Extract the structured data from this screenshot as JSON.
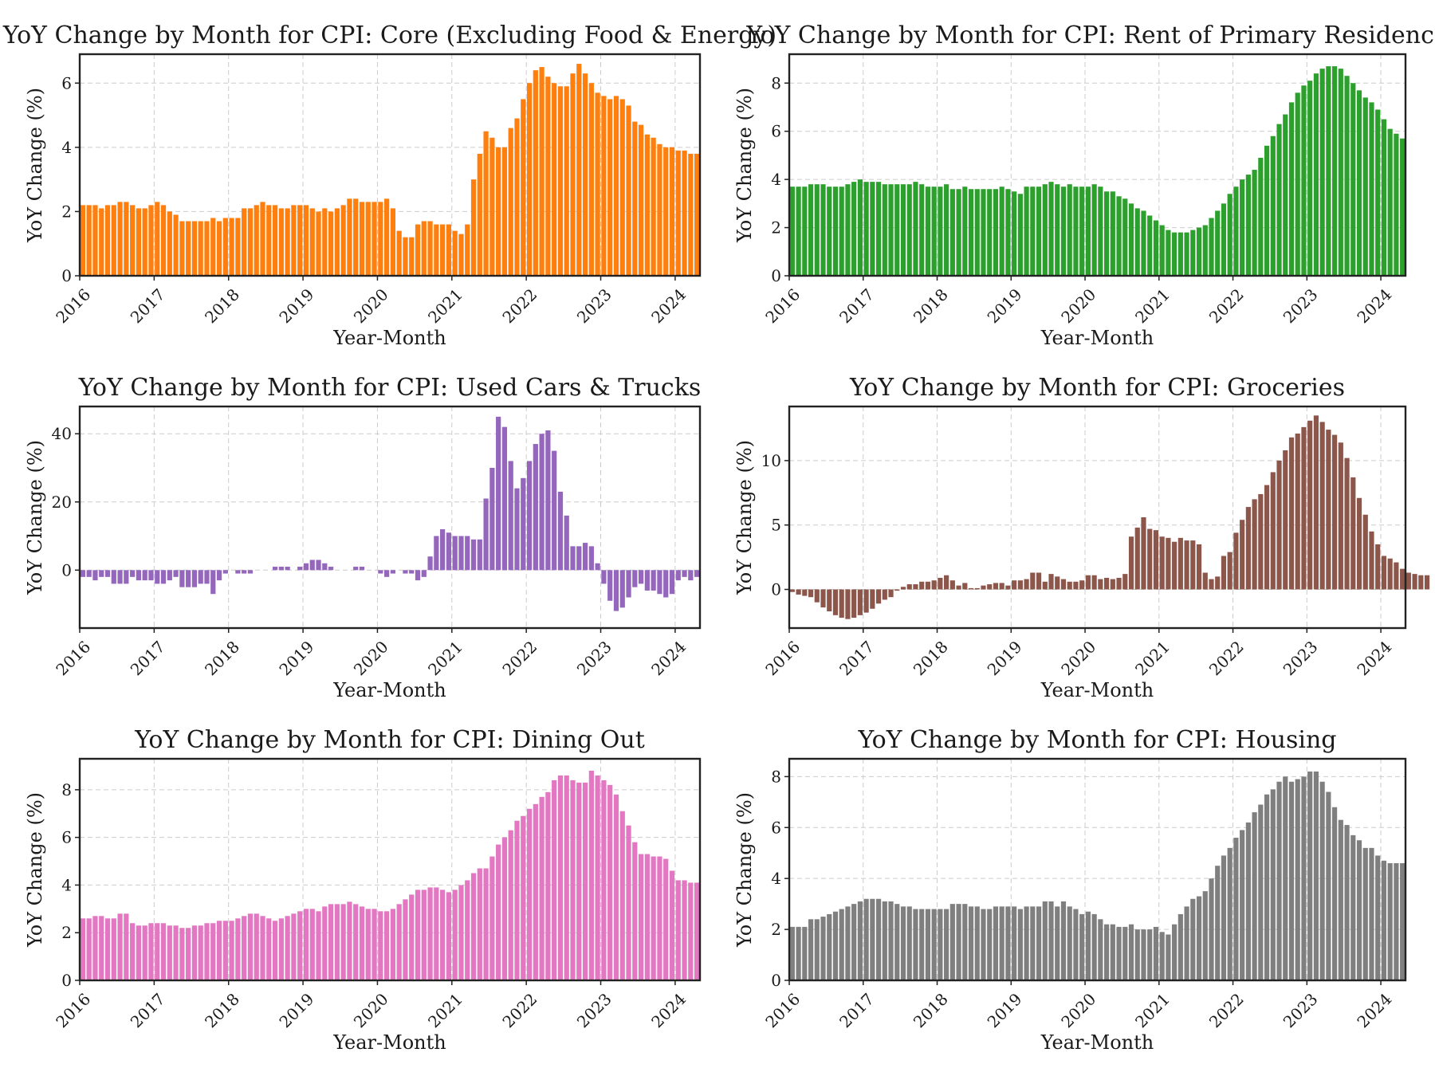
{
  "figure": {
    "panels": [
      {
        "title": "YoY Change by Month for CPI: Core (Excluding Food & Energy)",
        "xlabel": "Year-Month",
        "ylabel": "YoY Change (%)",
        "x_ticks": [
          "2016",
          "2017",
          "2018",
          "2019",
          "2020",
          "2021",
          "2022",
          "2023",
          "2024"
        ],
        "y_ticks": [
          0,
          2,
          4,
          6
        ],
        "ylim": [
          0,
          6.9
        ],
        "color": "#ff7f0e"
      },
      {
        "title": "YoY Change by Month for CPI: Rent of Primary Residence",
        "xlabel": "Year-Month",
        "ylabel": "YoY Change (%)",
        "x_ticks": [
          "2016",
          "2017",
          "2018",
          "2019",
          "2020",
          "2021",
          "2022",
          "2023",
          "2024"
        ],
        "y_ticks": [
          0,
          2,
          4,
          6,
          8
        ],
        "ylim": [
          0,
          9.2
        ],
        "color": "#2ca02c"
      },
      {
        "title": "YoY Change by Month for CPI: Used Cars & Trucks",
        "xlabel": "Year-Month",
        "ylabel": "YoY Change (%)",
        "x_ticks": [
          "2016",
          "2017",
          "2018",
          "2019",
          "2020",
          "2021",
          "2022",
          "2023",
          "2024"
        ],
        "y_ticks": [
          0,
          20,
          40
        ],
        "ylim": [
          -17,
          48
        ],
        "color": "#9467bd"
      },
      {
        "title": "YoY Change by Month for CPI: Groceries",
        "xlabel": "Year-Month",
        "ylabel": "YoY Change (%)",
        "x_ticks": [
          "2016",
          "2017",
          "2018",
          "2019",
          "2020",
          "2021",
          "2022",
          "2023",
          "2024"
        ],
        "y_ticks": [
          0,
          5,
          10
        ],
        "ylim": [
          -3,
          14.2
        ],
        "color": "#8c564b"
      },
      {
        "title": "YoY Change by Month for CPI: Dining Out",
        "xlabel": "Year-Month",
        "ylabel": "YoY Change (%)",
        "x_ticks": [
          "2016",
          "2017",
          "2018",
          "2019",
          "2020",
          "2021",
          "2022",
          "2023",
          "2024"
        ],
        "y_ticks": [
          0,
          2,
          4,
          6,
          8
        ],
        "ylim": [
          0,
          9.3
        ],
        "color": "#e377c2"
      },
      {
        "title": "YoY Change by Month for CPI: Housing",
        "xlabel": "Year-Month",
        "ylabel": "YoY Change (%)",
        "x_ticks": [
          "2016",
          "2017",
          "2018",
          "2019",
          "2020",
          "2021",
          "2022",
          "2023",
          "2024"
        ],
        "y_ticks": [
          0,
          2,
          4,
          6,
          8
        ],
        "ylim": [
          0,
          8.7
        ],
        "color": "#7f7f7f"
      }
    ]
  },
  "chart_data": [
    {
      "type": "bar",
      "title": "YoY Change by Month for CPI: Core (Excluding Food & Energy)",
      "xlabel": "Year-Month",
      "ylabel": "YoY Change (%)",
      "x_start": "2016-01",
      "x_frequency": "monthly",
      "ylim": [
        0,
        6.9
      ],
      "grid": true,
      "values": [
        2.2,
        2.2,
        2.2,
        2.1,
        2.2,
        2.2,
        2.3,
        2.3,
        2.2,
        2.1,
        2.1,
        2.2,
        2.3,
        2.2,
        2.0,
        1.9,
        1.7,
        1.7,
        1.7,
        1.7,
        1.7,
        1.8,
        1.7,
        1.8,
        1.8,
        1.8,
        2.1,
        2.1,
        2.2,
        2.3,
        2.2,
        2.2,
        2.1,
        2.1,
        2.2,
        2.2,
        2.2,
        2.1,
        2.0,
        2.1,
        2.0,
        2.1,
        2.2,
        2.4,
        2.4,
        2.3,
        2.3,
        2.3,
        2.3,
        2.4,
        2.1,
        1.4,
        1.2,
        1.2,
        1.6,
        1.7,
        1.7,
        1.6,
        1.6,
        1.6,
        1.4,
        1.3,
        1.6,
        3.0,
        3.8,
        4.5,
        4.3,
        4.0,
        4.0,
        4.6,
        4.9,
        5.5,
        6.0,
        6.4,
        6.5,
        6.2,
        6.0,
        5.9,
        5.9,
        6.3,
        6.6,
        6.3,
        6.0,
        5.7,
        5.6,
        5.5,
        5.6,
        5.5,
        5.3,
        4.8,
        4.7,
        4.4,
        4.3,
        4.1,
        4.0,
        4.0,
        3.9,
        3.9,
        3.8,
        3.8
      ]
    },
    {
      "type": "bar",
      "title": "YoY Change by Month for CPI: Rent of Primary Residence",
      "xlabel": "Year-Month",
      "ylabel": "YoY Change (%)",
      "x_start": "2016-01",
      "x_frequency": "monthly",
      "ylim": [
        0,
        9.2
      ],
      "grid": true,
      "values": [
        3.7,
        3.7,
        3.7,
        3.8,
        3.8,
        3.8,
        3.7,
        3.7,
        3.7,
        3.8,
        3.9,
        4.0,
        3.9,
        3.9,
        3.9,
        3.8,
        3.8,
        3.8,
        3.8,
        3.8,
        3.9,
        3.8,
        3.7,
        3.7,
        3.7,
        3.8,
        3.6,
        3.6,
        3.7,
        3.6,
        3.6,
        3.6,
        3.6,
        3.6,
        3.7,
        3.6,
        3.5,
        3.4,
        3.7,
        3.7,
        3.7,
        3.8,
        3.9,
        3.8,
        3.7,
        3.8,
        3.7,
        3.7,
        3.7,
        3.8,
        3.7,
        3.5,
        3.5,
        3.3,
        3.2,
        3.0,
        2.8,
        2.7,
        2.5,
        2.3,
        2.1,
        1.9,
        1.8,
        1.8,
        1.8,
        1.9,
        2.0,
        2.1,
        2.4,
        2.7,
        3.0,
        3.4,
        3.7,
        4.0,
        4.2,
        4.4,
        4.9,
        5.4,
        5.8,
        6.3,
        6.7,
        7.2,
        7.6,
        7.9,
        8.1,
        8.4,
        8.6,
        8.7,
        8.7,
        8.6,
        8.3,
        8.0,
        7.7,
        7.4,
        7.2,
        6.9,
        6.5,
        6.1,
        5.9,
        5.7
      ]
    },
    {
      "type": "bar",
      "title": "YoY Change by Month for CPI: Used Cars & Trucks",
      "xlabel": "Year-Month",
      "ylabel": "YoY Change (%)",
      "x_start": "2016-01",
      "x_frequency": "monthly",
      "ylim": [
        -17,
        48
      ],
      "grid": true,
      "values": [
        -2,
        -2,
        -3,
        -2,
        -2,
        -4,
        -4,
        -4,
        -2,
        -3,
        -3,
        -3,
        -4,
        -4,
        -3,
        -2,
        -5,
        -5,
        -5,
        -4,
        -4,
        -7,
        -3,
        -1,
        0,
        -1,
        -1,
        -1,
        0,
        0,
        0,
        1,
        1,
        1,
        0,
        1,
        2,
        3,
        3,
        2,
        1,
        0,
        0,
        0,
        1,
        1,
        0,
        0,
        -1,
        -2,
        -1,
        0,
        -1,
        -1,
        -3,
        -2,
        4,
        10,
        12,
        11,
        10,
        10,
        10,
        9,
        9,
        21,
        30,
        45,
        42,
        32,
        24,
        27,
        32,
        37,
        40,
        41,
        35,
        23,
        16,
        7,
        7,
        8,
        7,
        2,
        -4,
        -9,
        -12,
        -11,
        -8,
        -5,
        -4,
        -6,
        -6,
        -7,
        -8,
        -7,
        -3,
        -2,
        -3,
        -2
      ]
    },
    {
      "type": "bar",
      "title": "YoY Change by Month for CPI: Groceries",
      "xlabel": "Year-Month",
      "ylabel": "YoY Change (%)",
      "x_start": "2016-01",
      "x_frequency": "monthly",
      "ylim": [
        -3,
        14.2
      ],
      "grid": true,
      "values": [
        -0.2,
        -0.4,
        -0.5,
        -0.6,
        -1.0,
        -1.4,
        -1.7,
        -2.0,
        -2.2,
        -2.3,
        -2.2,
        -2.0,
        -1.8,
        -1.5,
        -1.1,
        -0.8,
        -0.6,
        -0.1,
        0.2,
        0.4,
        0.4,
        0.6,
        0.6,
        0.7,
        0.9,
        1.1,
        0.7,
        0.3,
        0.5,
        0.1,
        0.1,
        0.3,
        0.4,
        0.5,
        0.5,
        0.3,
        0.7,
        0.7,
        0.8,
        1.3,
        1.3,
        0.6,
        1.2,
        1.0,
        0.8,
        0.6,
        0.6,
        0.7,
        1.1,
        1.1,
        0.8,
        0.9,
        0.8,
        0.9,
        1.2,
        4.1,
        4.8,
        5.6,
        4.7,
        4.6,
        4.1,
        4.0,
        3.7,
        4.0,
        3.8,
        3.8,
        3.5,
        1.3,
        0.8,
        1.0,
        2.6,
        2.9,
        4.4,
        5.4,
        6.4,
        7.0,
        7.4,
        8.1,
        9.1,
        10.0,
        10.8,
        11.8,
        12.1,
        12.6,
        13.1,
        13.5,
        13.0,
        12.4,
        12.0,
        11.4,
        10.2,
        8.7,
        7.1,
        5.8,
        4.5,
        3.5,
        2.6,
        2.4,
        2.1,
        1.6,
        1.3,
        1.2,
        1.1,
        1.1
      ]
    },
    {
      "type": "bar",
      "title": "YoY Change by Month for CPI: Dining Out",
      "xlabel": "Year-Month",
      "ylabel": "YoY Change (%)",
      "x_start": "2016-01",
      "x_frequency": "monthly",
      "ylim": [
        0,
        9.3
      ],
      "grid": true,
      "values": [
        2.6,
        2.6,
        2.7,
        2.7,
        2.6,
        2.6,
        2.8,
        2.8,
        2.4,
        2.3,
        2.3,
        2.4,
        2.4,
        2.4,
        2.3,
        2.3,
        2.2,
        2.2,
        2.3,
        2.3,
        2.4,
        2.4,
        2.5,
        2.5,
        2.5,
        2.6,
        2.7,
        2.8,
        2.8,
        2.7,
        2.6,
        2.5,
        2.6,
        2.7,
        2.8,
        2.9,
        3.0,
        3.0,
        2.9,
        3.1,
        3.2,
        3.2,
        3.2,
        3.3,
        3.2,
        3.1,
        3.0,
        3.0,
        2.9,
        2.9,
        3.0,
        3.2,
        3.4,
        3.6,
        3.8,
        3.8,
        3.9,
        3.9,
        3.8,
        3.7,
        3.8,
        4.0,
        4.2,
        4.5,
        4.7,
        4.7,
        5.2,
        5.7,
        6.0,
        6.3,
        6.7,
        6.9,
        7.2,
        7.4,
        7.7,
        7.9,
        8.4,
        8.6,
        8.6,
        8.4,
        8.3,
        8.3,
        8.8,
        8.6,
        8.4,
        8.2,
        7.8,
        7.1,
        6.5,
        5.8,
        5.3,
        5.3,
        5.2,
        5.2,
        5.1,
        4.6,
        4.2,
        4.2,
        4.1,
        4.1
      ]
    },
    {
      "type": "bar",
      "title": "YoY Change by Month for CPI: Housing",
      "xlabel": "Year-Month",
      "ylabel": "YoY Change (%)",
      "x_start": "2016-01",
      "x_frequency": "monthly",
      "ylim": [
        0,
        8.7
      ],
      "grid": true,
      "values": [
        2.1,
        2.1,
        2.1,
        2.4,
        2.4,
        2.5,
        2.6,
        2.7,
        2.8,
        2.9,
        3.0,
        3.1,
        3.2,
        3.2,
        3.2,
        3.1,
        3.1,
        3.0,
        2.9,
        2.9,
        2.8,
        2.8,
        2.8,
        2.8,
        2.8,
        2.8,
        3.0,
        3.0,
        3.0,
        2.9,
        2.9,
        2.8,
        2.8,
        2.9,
        2.9,
        2.9,
        2.9,
        2.8,
        2.9,
        2.9,
        2.9,
        3.1,
        3.1,
        2.9,
        3.1,
        2.9,
        2.8,
        2.6,
        2.7,
        2.6,
        2.4,
        2.2,
        2.2,
        2.1,
        2.1,
        2.2,
        2.0,
        2.0,
        2.0,
        2.1,
        1.9,
        1.8,
        2.2,
        2.6,
        2.9,
        3.2,
        3.3,
        3.5,
        4.0,
        4.5,
        4.9,
        5.2,
        5.6,
        5.9,
        6.2,
        6.6,
        6.9,
        7.3,
        7.5,
        7.8,
        8.0,
        7.8,
        7.9,
        8.0,
        8.2,
        8.2,
        7.8,
        7.4,
        6.8,
        6.3,
        6.1,
        5.7,
        5.5,
        5.2,
        5.2,
        4.9,
        4.7,
        4.6,
        4.6,
        4.6
      ]
    }
  ]
}
